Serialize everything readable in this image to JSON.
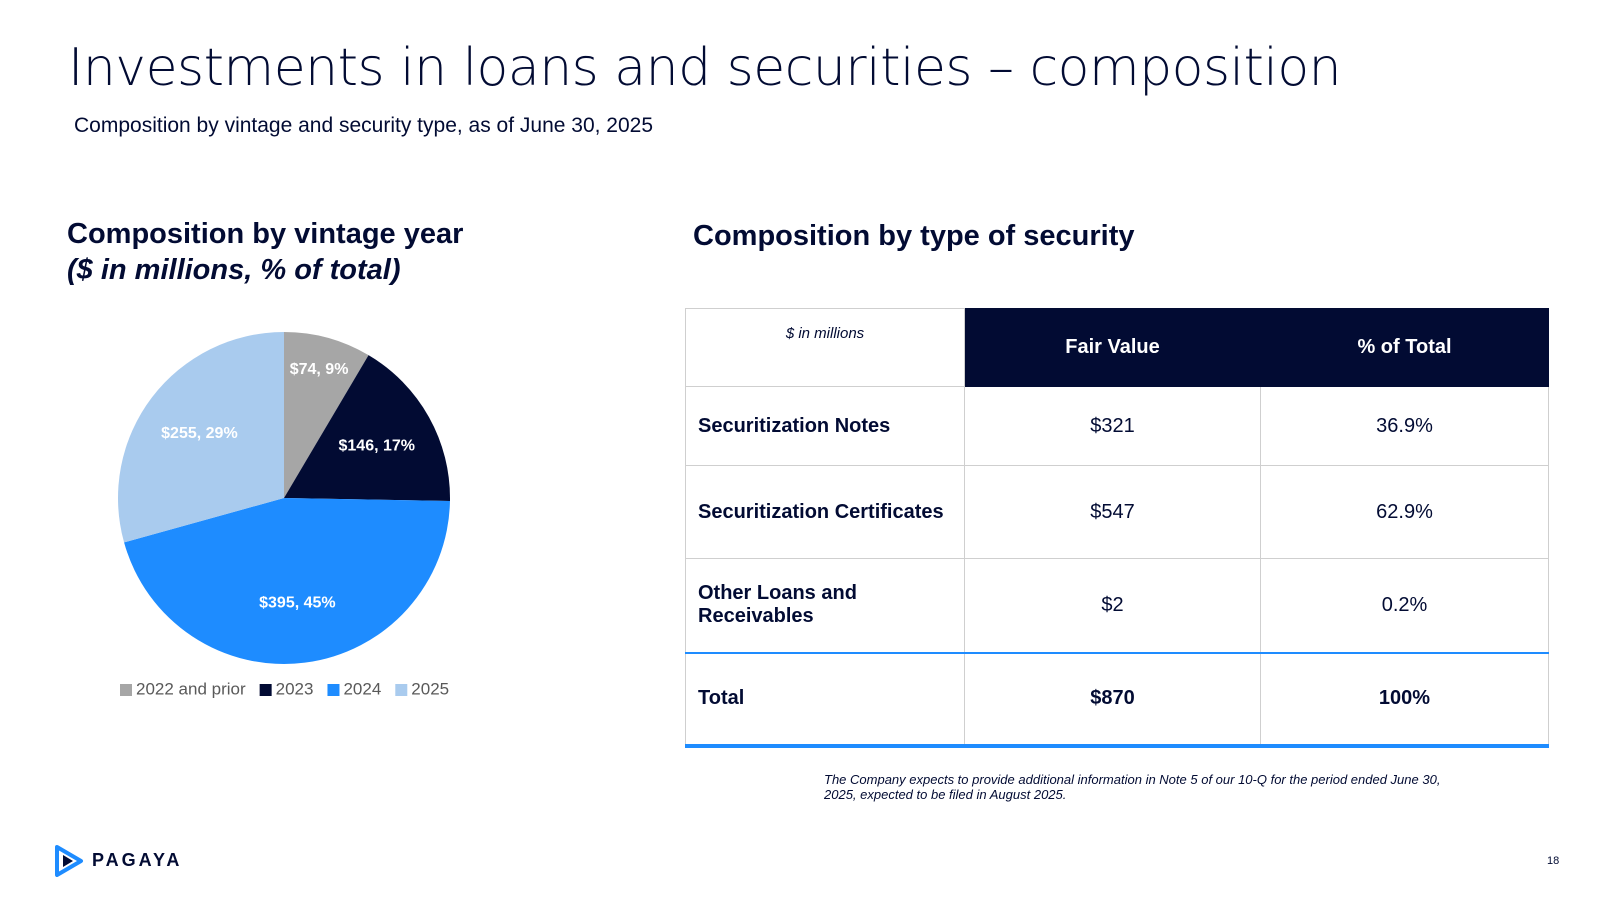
{
  "header": {
    "title": "Investments in loans and securities – composition",
    "subtitle": "Composition by vintage and security type, as of June 30, 2025"
  },
  "chart_data": {
    "type": "pie",
    "title": "Composition by vintage year",
    "subtitle": "($ in millions, % of total)",
    "categories": [
      "2022 and prior",
      "2023",
      "2024",
      "2025"
    ],
    "values": [
      74,
      146,
      395,
      255
    ],
    "value_labels": [
      "$74, 9%",
      "$146, 17%",
      "$395, 45%",
      "$255, 29%"
    ],
    "colors": [
      "#a6a6a6",
      "#020b33",
      "#1e8cff",
      "#a9cbee"
    ],
    "legend": "bottom"
  },
  "table": {
    "title": "Composition by type of security",
    "header": [
      "$ in millions",
      "Fair Value",
      "% of Total"
    ],
    "rows": [
      [
        "Securitization Notes",
        "$321",
        "36.9%"
      ],
      [
        "Securitization Certificates",
        "$547",
        "62.9%"
      ],
      [
        "Other Loans and Receivables",
        "$2",
        "0.2%"
      ],
      [
        "Total",
        "$870",
        "100%"
      ]
    ]
  },
  "footnote": "The Company expects to provide additional information in Note 5 of our 10-Q for the period ended June 30, 2025, expected to be filed in August 2025.",
  "footer": {
    "logo": "PAGAYA",
    "page": "18"
  }
}
